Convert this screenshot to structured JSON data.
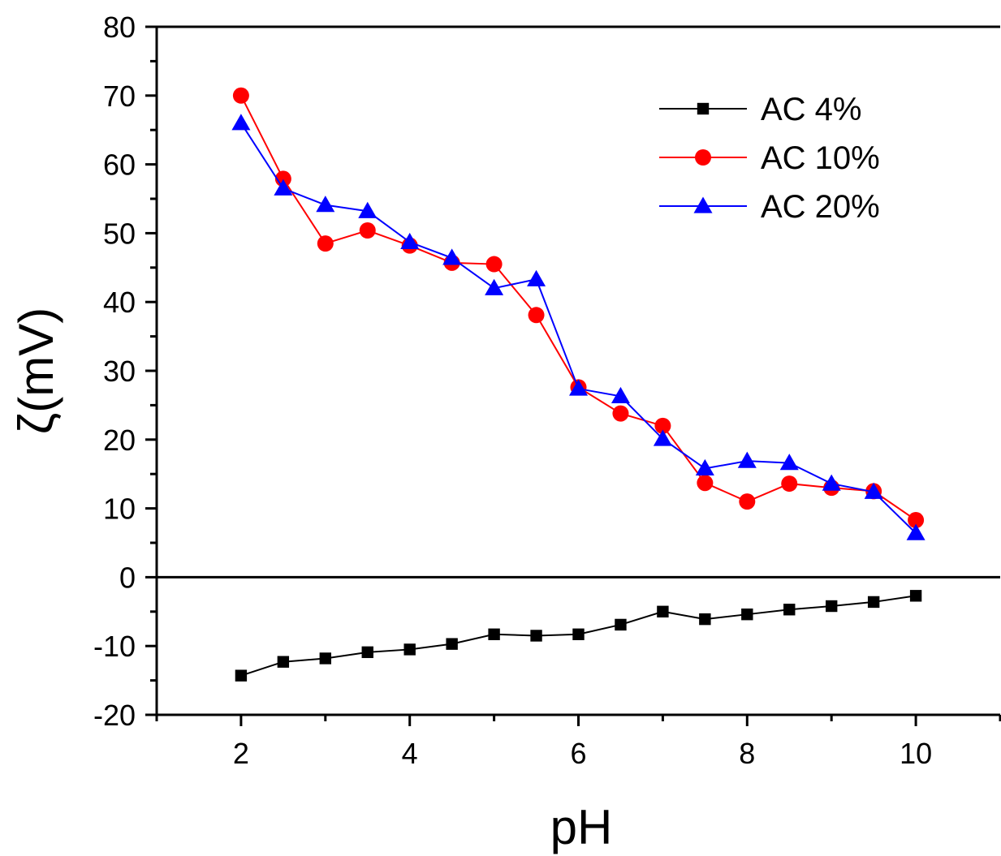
{
  "chart_data": {
    "type": "line",
    "title": "",
    "xlabel": "pH",
    "ylabel": "ζ(mV)",
    "xlim": [
      1,
      11
    ],
    "ylim": [
      -20,
      80
    ],
    "x_ticks": [
      2,
      4,
      6,
      8,
      10
    ],
    "y_ticks": [
      -20,
      -10,
      0,
      10,
      20,
      30,
      40,
      50,
      60,
      70,
      80
    ],
    "x_tick_labels": [
      "2",
      "4",
      "6",
      "8",
      "10"
    ],
    "y_tick_labels": [
      "-20",
      "-10",
      "0",
      "10",
      "20",
      "30",
      "40",
      "50",
      "60",
      "70",
      "80"
    ],
    "grid": false,
    "legend_position": "top-right",
    "series": [
      {
        "name": "AC 4%",
        "color": "#000000",
        "marker": "square",
        "x": [
          2.0,
          2.5,
          3.0,
          3.5,
          4.0,
          4.5,
          5.0,
          5.5,
          6.0,
          6.5,
          7.0,
          7.5,
          8.0,
          8.5,
          9.0,
          9.5,
          10.0
        ],
        "y": [
          -14.3,
          -12.3,
          -11.8,
          -10.9,
          -10.5,
          -9.7,
          -8.3,
          -8.5,
          -8.3,
          -6.9,
          -5.0,
          -6.1,
          -5.4,
          -4.7,
          -4.2,
          -3.6,
          -2.7
        ]
      },
      {
        "name": "AC 10%",
        "color": "#ff0000",
        "marker": "circle",
        "x": [
          2.0,
          2.5,
          3.0,
          3.5,
          4.0,
          4.5,
          5.0,
          5.5,
          6.0,
          6.5,
          7.0,
          7.5,
          8.0,
          8.5,
          9.0,
          9.5,
          10.0
        ],
        "y": [
          70.0,
          57.9,
          48.5,
          50.4,
          48.2,
          45.7,
          45.5,
          38.1,
          27.6,
          23.8,
          22.0,
          13.7,
          11.0,
          13.6,
          13.0,
          12.5,
          8.3
        ]
      },
      {
        "name": "AC 20%",
        "color": "#0000ff",
        "marker": "triangle",
        "x": [
          2.0,
          2.5,
          3.0,
          3.5,
          4.0,
          4.5,
          5.0,
          5.5,
          6.0,
          6.5,
          7.0,
          7.5,
          8.0,
          8.5,
          9.0,
          9.5,
          10.0
        ],
        "y": [
          66.0,
          56.5,
          54.1,
          53.2,
          48.7,
          46.4,
          42.0,
          43.3,
          27.4,
          26.3,
          20.1,
          15.8,
          16.9,
          16.6,
          13.6,
          12.4,
          6.4
        ]
      }
    ]
  }
}
